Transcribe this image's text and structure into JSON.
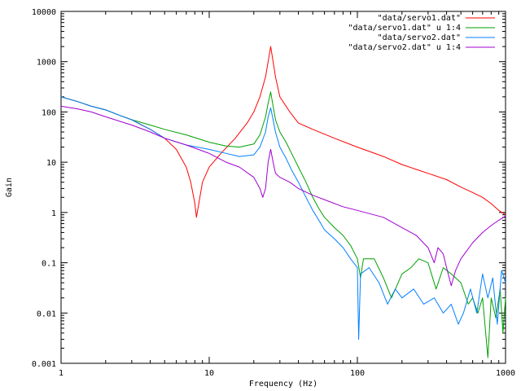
{
  "chart_data": {
    "type": "line",
    "title": "",
    "xlabel": "Frequency (Hz)",
    "ylabel": "Gain",
    "x_scale": "log",
    "y_scale": "log",
    "xlim": [
      1,
      1000
    ],
    "ylim": [
      0.001,
      10000
    ],
    "x_ticks": [
      {
        "value": 1,
        "label": "1"
      },
      {
        "value": 10,
        "label": "10"
      },
      {
        "value": 100,
        "label": "100"
      },
      {
        "value": 1000,
        "label": "1000"
      }
    ],
    "y_ticks": [
      {
        "value": 0.001,
        "label": "0.001"
      },
      {
        "value": 0.01,
        "label": "0.01"
      },
      {
        "value": 0.1,
        "label": "0.1"
      },
      {
        "value": 1,
        "label": "1"
      },
      {
        "value": 10,
        "label": "10"
      },
      {
        "value": 100,
        "label": "100"
      },
      {
        "value": 1000,
        "label": "1000"
      },
      {
        "value": 10000,
        "label": "10000"
      }
    ],
    "grid": false,
    "legend_position": "top-right",
    "series": [
      {
        "name": "\"data/servo1.dat\"",
        "color": "#ff0000",
        "points": [
          [
            1,
            200
          ],
          [
            1.3,
            160
          ],
          [
            1.6,
            130
          ],
          [
            2,
            110
          ],
          [
            2.5,
            85
          ],
          [
            3,
            70
          ],
          [
            3.5,
            55
          ],
          [
            4,
            45
          ],
          [
            5,
            30
          ],
          [
            6,
            18
          ],
          [
            7,
            8
          ],
          [
            7.5,
            4
          ],
          [
            8,
            1.5
          ],
          [
            8.2,
            0.8
          ],
          [
            8.5,
            1.5
          ],
          [
            9,
            4
          ],
          [
            10,
            8
          ],
          [
            12,
            15
          ],
          [
            15,
            30
          ],
          [
            18,
            60
          ],
          [
            20,
            100
          ],
          [
            22,
            200
          ],
          [
            24,
            500
          ],
          [
            25,
            1000
          ],
          [
            26,
            2000
          ],
          [
            27,
            1000
          ],
          [
            28,
            500
          ],
          [
            30,
            200
          ],
          [
            35,
            100
          ],
          [
            40,
            60
          ],
          [
            50,
            45
          ],
          [
            70,
            30
          ],
          [
            100,
            20
          ],
          [
            150,
            13
          ],
          [
            200,
            9
          ],
          [
            300,
            6
          ],
          [
            400,
            4.5
          ],
          [
            500,
            3.2
          ],
          [
            600,
            2.5
          ],
          [
            700,
            2
          ],
          [
            800,
            1.5
          ],
          [
            900,
            1.1
          ],
          [
            1000,
            0.9
          ]
        ]
      },
      {
        "name": "\"data/servo1.dat\" u 1:4",
        "color": "#00a000",
        "points": [
          [
            1,
            200
          ],
          [
            1.3,
            160
          ],
          [
            1.6,
            130
          ],
          [
            2,
            110
          ],
          [
            2.5,
            85
          ],
          [
            3,
            70
          ],
          [
            4,
            55
          ],
          [
            5,
            45
          ],
          [
            7,
            35
          ],
          [
            10,
            25
          ],
          [
            13,
            21
          ],
          [
            16,
            20
          ],
          [
            20,
            23
          ],
          [
            22,
            35
          ],
          [
            24,
            80
          ],
          [
            25,
            150
          ],
          [
            26,
            250
          ],
          [
            27,
            130
          ],
          [
            28,
            70
          ],
          [
            30,
            40
          ],
          [
            33,
            25
          ],
          [
            36,
            15
          ],
          [
            40,
            8
          ],
          [
            45,
            4
          ],
          [
            50,
            2
          ],
          [
            55,
            1.2
          ],
          [
            60,
            0.8
          ],
          [
            70,
            0.5
          ],
          [
            80,
            0.35
          ],
          [
            90,
            0.22
          ],
          [
            100,
            0.12
          ],
          [
            105,
            0.05
          ],
          [
            110,
            0.12
          ],
          [
            130,
            0.12
          ],
          [
            150,
            0.05
          ],
          [
            170,
            0.02
          ],
          [
            200,
            0.06
          ],
          [
            230,
            0.08
          ],
          [
            260,
            0.12
          ],
          [
            300,
            0.1
          ],
          [
            340,
            0.03
          ],
          [
            380,
            0.08
          ],
          [
            430,
            0.06
          ],
          [
            500,
            0.04
          ],
          [
            560,
            0.015
          ],
          [
            600,
            0.02
          ],
          [
            650,
            0.01
          ],
          [
            700,
            0.02
          ],
          [
            760,
            0.0013
          ],
          [
            800,
            0.02
          ],
          [
            860,
            0.008
          ],
          [
            920,
            0.03
          ],
          [
            960,
            0.004
          ],
          [
            1000,
            0.02
          ]
        ]
      },
      {
        "name": "\"data/servo2.dat\"",
        "color": "#0080ff",
        "points": [
          [
            1,
            200
          ],
          [
            1.3,
            160
          ],
          [
            1.6,
            130
          ],
          [
            2,
            110
          ],
          [
            2.5,
            85
          ],
          [
            3,
            70
          ],
          [
            4,
            45
          ],
          [
            5,
            30
          ],
          [
            7,
            22
          ],
          [
            10,
            18
          ],
          [
            13,
            15
          ],
          [
            16,
            13
          ],
          [
            20,
            14
          ],
          [
            22,
            20
          ],
          [
            24,
            40
          ],
          [
            25,
            80
          ],
          [
            26,
            120
          ],
          [
            27,
            70
          ],
          [
            28,
            40
          ],
          [
            30,
            20
          ],
          [
            33,
            12
          ],
          [
            36,
            7
          ],
          [
            40,
            4
          ],
          [
            45,
            2
          ],
          [
            50,
            1.1
          ],
          [
            55,
            0.7
          ],
          [
            60,
            0.45
          ],
          [
            70,
            0.3
          ],
          [
            80,
            0.2
          ],
          [
            90,
            0.12
          ],
          [
            100,
            0.08
          ],
          [
            102,
            0.003
          ],
          [
            105,
            0.06
          ],
          [
            120,
            0.08
          ],
          [
            140,
            0.04
          ],
          [
            160,
            0.015
          ],
          [
            180,
            0.03
          ],
          [
            200,
            0.02
          ],
          [
            240,
            0.03
          ],
          [
            280,
            0.015
          ],
          [
            330,
            0.02
          ],
          [
            380,
            0.01
          ],
          [
            430,
            0.015
          ],
          [
            480,
            0.006
          ],
          [
            520,
            0.01
          ],
          [
            580,
            0.03
          ],
          [
            640,
            0.01
          ],
          [
            700,
            0.06
          ],
          [
            760,
            0.02
          ],
          [
            820,
            0.05
          ],
          [
            880,
            0.006
          ],
          [
            940,
            0.07
          ],
          [
            1000,
            0.04
          ]
        ]
      },
      {
        "name": "\"data/servo2.dat\" u 1:4",
        "color": "#a000d0",
        "points": [
          [
            1,
            130
          ],
          [
            1.3,
            115
          ],
          [
            1.6,
            100
          ],
          [
            2,
            80
          ],
          [
            2.5,
            65
          ],
          [
            3,
            55
          ],
          [
            4,
            40
          ],
          [
            5,
            30
          ],
          [
            7,
            22
          ],
          [
            10,
            15
          ],
          [
            13,
            10
          ],
          [
            16,
            8
          ],
          [
            20,
            5
          ],
          [
            22,
            3
          ],
          [
            23,
            2
          ],
          [
            24,
            3
          ],
          [
            25,
            10
          ],
          [
            26,
            18
          ],
          [
            27,
            10
          ],
          [
            28,
            6
          ],
          [
            30,
            5
          ],
          [
            35,
            4
          ],
          [
            40,
            3
          ],
          [
            50,
            2.2
          ],
          [
            60,
            1.8
          ],
          [
            80,
            1.3
          ],
          [
            100,
            1.1
          ],
          [
            150,
            0.8
          ],
          [
            200,
            0.5
          ],
          [
            250,
            0.35
          ],
          [
            300,
            0.2
          ],
          [
            330,
            0.1
          ],
          [
            350,
            0.2
          ],
          [
            380,
            0.15
          ],
          [
            400,
            0.08
          ],
          [
            430,
            0.035
          ],
          [
            460,
            0.07
          ],
          [
            500,
            0.12
          ],
          [
            600,
            0.25
          ],
          [
            700,
            0.4
          ],
          [
            800,
            0.55
          ],
          [
            900,
            0.7
          ],
          [
            1000,
            0.85
          ]
        ]
      }
    ]
  }
}
